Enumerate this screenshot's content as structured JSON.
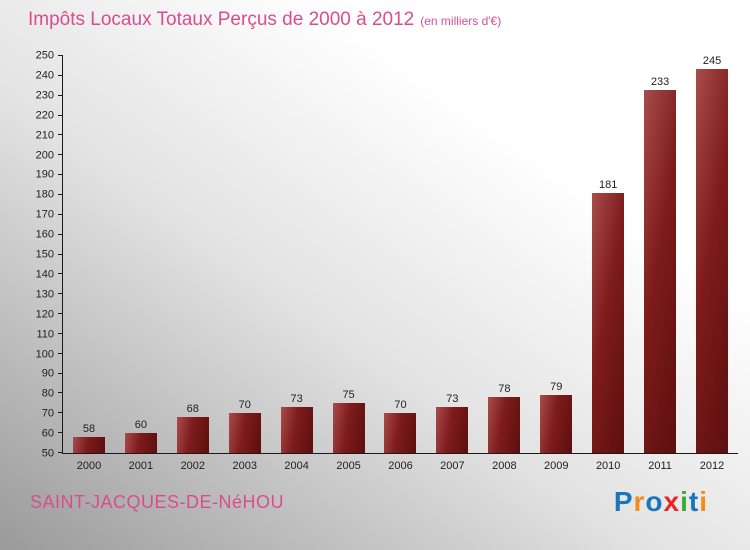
{
  "title": "Impôts Locaux Totaux Perçus de 2000 à 2012",
  "subtitle": "(en milliers d'€)",
  "footer": {
    "place": "SAINT-JACQUES-DE-NéHOU"
  },
  "logo": {
    "letters": [
      {
        "char": "P",
        "color": "#1b75bc"
      },
      {
        "char": "r",
        "color": "#f28c1e"
      },
      {
        "char": "o",
        "color": "#1b75bc"
      },
      {
        "char": "x",
        "color": "#e8262a"
      },
      {
        "char": "i",
        "color": "#3aaa35"
      },
      {
        "char": "t",
        "color": "#1b75bc"
      },
      {
        "char": "i",
        "color": "#f28c1e"
      }
    ]
  },
  "chart_data": {
    "type": "bar",
    "title": "Impôts Locaux Totaux Perçus de 2000 à 2012 (en milliers d'€)",
    "categories": [
      "2000",
      "2001",
      "2002",
      "2003",
      "2004",
      "2005",
      "2006",
      "2007",
      "2008",
      "2009",
      "2010",
      "2011",
      "2012"
    ],
    "values": [
      58,
      60,
      68,
      70,
      73,
      75,
      70,
      73,
      78,
      79,
      181,
      233,
      245
    ],
    "xlabel": "",
    "ylabel": "",
    "ylim": [
      50,
      250
    ],
    "ytick_step": 10,
    "grid": false,
    "legend": "none",
    "bar_color": "#7e1b1b"
  }
}
